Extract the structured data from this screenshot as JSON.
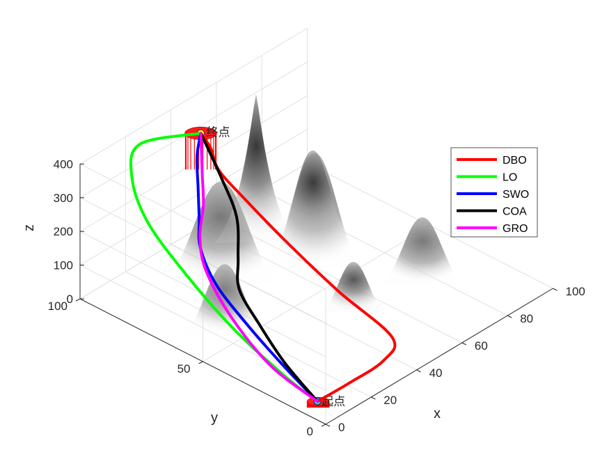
{
  "chart_data": {
    "type": "surface3d-paths",
    "title": "",
    "xlabel": "x",
    "ylabel": "y",
    "zlabel": "z",
    "xlim": [
      0,
      100
    ],
    "ylim": [
      0,
      100
    ],
    "zlim": [
      0,
      400
    ],
    "xticks": [
      0,
      20,
      40,
      60,
      80,
      100
    ],
    "yticks": [
      0,
      50,
      100
    ],
    "zticks": [
      0,
      100,
      200,
      300,
      400
    ],
    "grid": true,
    "legend_position": "top-right",
    "start_label": "起点",
    "end_label": "终点",
    "series": [
      {
        "name": "DBO",
        "color": "#ff0000",
        "points": [
          [
            5,
            8,
            18
          ],
          [
            18,
            7,
            24
          ],
          [
            32,
            6,
            38
          ],
          [
            40,
            10,
            60
          ],
          [
            38,
            30,
            130
          ],
          [
            36,
            50,
            215
          ],
          [
            34,
            64,
            290
          ],
          [
            33,
            74,
            345
          ],
          [
            36,
            80,
            375
          ],
          [
            38,
            86,
            390
          ]
        ]
      },
      {
        "name": "LO",
        "color": "#00ff00",
        "points": [
          [
            5,
            8,
            18
          ],
          [
            4,
            20,
            50
          ],
          [
            3,
            40,
            120
          ],
          [
            4,
            60,
            200
          ],
          [
            6,
            78,
            285
          ],
          [
            12,
            90,
            350
          ],
          [
            22,
            96,
            385
          ],
          [
            38,
            86,
            390
          ]
        ]
      },
      {
        "name": "SWO",
        "color": "#0000ff",
        "points": [
          [
            5,
            8,
            18
          ],
          [
            6,
            24,
            70
          ],
          [
            8,
            40,
            120
          ],
          [
            10,
            54,
            175
          ],
          [
            14,
            64,
            230
          ],
          [
            20,
            70,
            270
          ],
          [
            26,
            76,
            315
          ],
          [
            32,
            82,
            360
          ],
          [
            38,
            86,
            390
          ]
        ]
      },
      {
        "name": "COA",
        "color": "#000000",
        "points": [
          [
            5,
            8,
            18
          ],
          [
            8,
            24,
            60
          ],
          [
            12,
            38,
            105
          ],
          [
            16,
            50,
            150
          ],
          [
            22,
            56,
            195
          ],
          [
            30,
            64,
            255
          ],
          [
            34,
            74,
            320
          ],
          [
            38,
            86,
            390
          ]
        ]
      },
      {
        "name": "GRO",
        "color": "#ff00ff",
        "points": [
          [
            5,
            8,
            18
          ],
          [
            4,
            26,
            60
          ],
          [
            6,
            44,
            130
          ],
          [
            10,
            58,
            200
          ],
          [
            16,
            66,
            245
          ],
          [
            24,
            72,
            285
          ],
          [
            30,
            78,
            330
          ],
          [
            38,
            86,
            390
          ]
        ]
      }
    ]
  }
}
